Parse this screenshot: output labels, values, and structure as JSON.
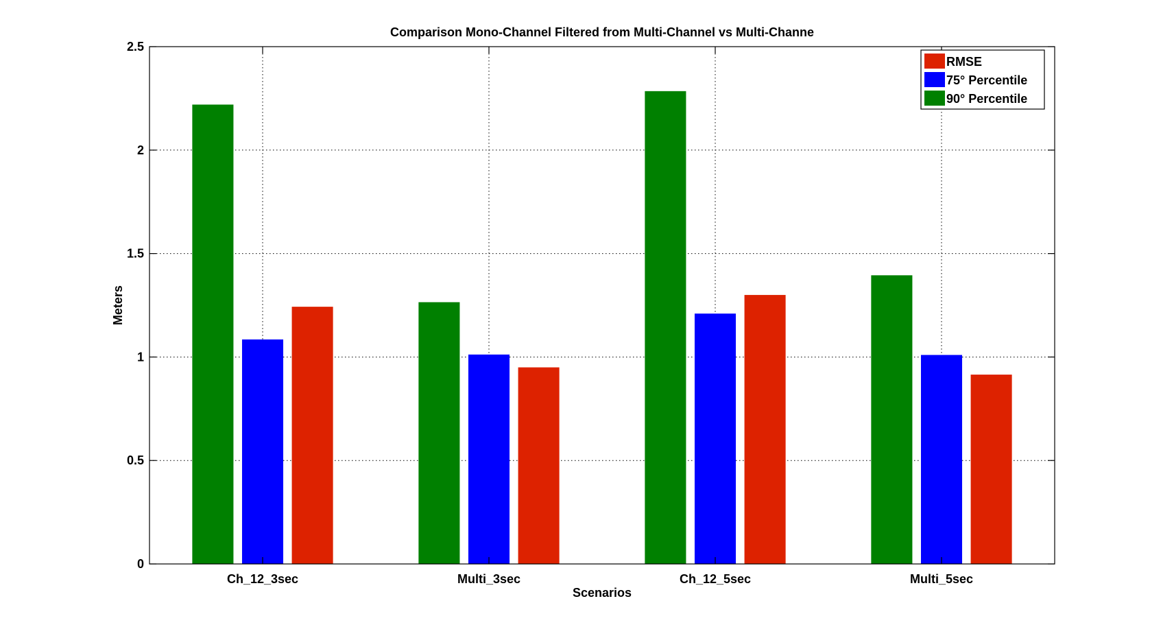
{
  "chart_data": {
    "type": "bar",
    "title": "Comparison Mono-Channel Filtered from Multi-Channel vs Multi-Channe",
    "xlabel": "Scenarios",
    "ylabel": "Meters",
    "categories": [
      "Ch_12_3sec",
      "Multi_3sec",
      "Ch_12_5sec",
      "Multi_5sec"
    ],
    "series": [
      {
        "name": "90° Percentile",
        "color": "#008000",
        "values": [
          2.22,
          1.265,
          2.285,
          1.395
        ]
      },
      {
        "name": "75° Percentile",
        "color": "#0000FF",
        "values": [
          1.085,
          1.012,
          1.21,
          1.01
        ]
      },
      {
        "name": "RMSE",
        "color": "#DD2200",
        "values": [
          1.243,
          0.95,
          1.3,
          0.915
        ]
      }
    ],
    "legend_order": [
      "RMSE",
      "75° Percentile",
      "90° Percentile"
    ],
    "legend_position": "top-right",
    "ylim": [
      0,
      2.5
    ],
    "yticks": [
      0,
      0.5,
      1,
      1.5,
      2,
      2.5
    ],
    "ytick_labels": [
      "0",
      "0.5",
      "1",
      "1.5",
      "2",
      "2.5"
    ],
    "grid": true
  }
}
